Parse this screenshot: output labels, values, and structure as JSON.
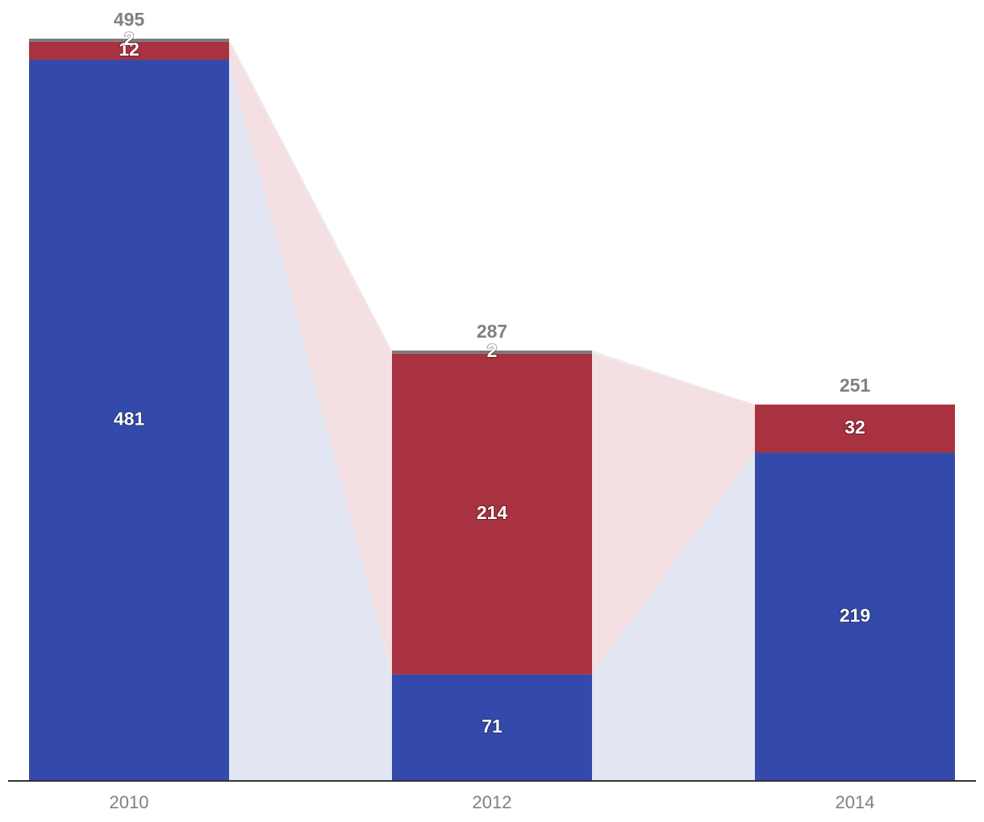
{
  "chart_data": {
    "type": "bar",
    "stacked": true,
    "title": "",
    "xlabel": "",
    "ylabel": "",
    "categories": [
      "2010",
      "2012",
      "2014"
    ],
    "series": [
      {
        "values": [
          481,
          71,
          219
        ],
        "color": "#334aab",
        "band_color": "#e2e5f2"
      },
      {
        "values": [
          12,
          214,
          32
        ],
        "color": "#a83240",
        "band_color": "#f4e0e2"
      },
      {
        "values": [
          2,
          2,
          0
        ],
        "color": "#7a7a7a",
        "band_color": "#ececec"
      }
    ],
    "totals": [
      "495",
      "287",
      "251"
    ],
    "ylim": [
      0,
      495
    ],
    "grid": false,
    "legend": "none"
  }
}
